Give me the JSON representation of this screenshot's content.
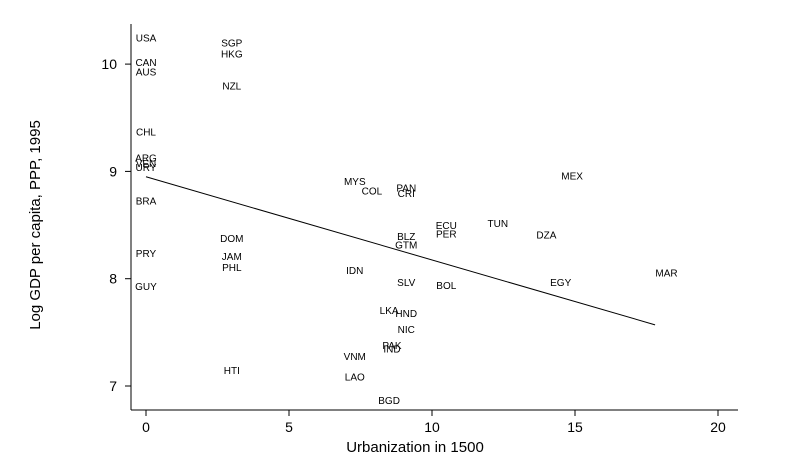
{
  "chart_data": {
    "type": "scatter",
    "title": "",
    "xlabel": "Urbanization in 1500",
    "ylabel": "Log GDP per capita, PPP, 1995",
    "xlim": [
      -0.5,
      20.5
    ],
    "ylim": [
      6.75,
      10.45
    ],
    "x_ticks": [
      0,
      5,
      10,
      15,
      20
    ],
    "y_ticks": [
      7,
      8,
      9,
      10
    ],
    "grid": false,
    "legend": "none",
    "points": [
      {
        "label": "USA",
        "x": 0,
        "y": 10.25
      },
      {
        "label": "CAN",
        "x": 0,
        "y": 10.02
      },
      {
        "label": "AUS",
        "x": 0,
        "y": 9.93
      },
      {
        "label": "CHL",
        "x": 0,
        "y": 9.37
      },
      {
        "label": "ARG",
        "x": 0,
        "y": 9.13
      },
      {
        "label": "VEN",
        "x": 0,
        "y": 9.08
      },
      {
        "label": "URY",
        "x": 0,
        "y": 9.04
      },
      {
        "label": "BRA",
        "x": 0,
        "y": 8.73
      },
      {
        "label": "PRY",
        "x": 0,
        "y": 8.24
      },
      {
        "label": "GUY",
        "x": 0,
        "y": 7.93
      },
      {
        "label": "SGP",
        "x": 3,
        "y": 10.2
      },
      {
        "label": "HKG",
        "x": 3,
        "y": 10.1
      },
      {
        "label": "NZL",
        "x": 3,
        "y": 9.8
      },
      {
        "label": "DOM",
        "x": 3,
        "y": 8.38
      },
      {
        "label": "JAM",
        "x": 3,
        "y": 8.21
      },
      {
        "label": "PHL",
        "x": 3,
        "y": 8.11
      },
      {
        "label": "HTI",
        "x": 3,
        "y": 7.15
      },
      {
        "label": "MYS",
        "x": 7.3,
        "y": 8.91
      },
      {
        "label": "COL",
        "x": 7.9,
        "y": 8.82
      },
      {
        "label": "IDN",
        "x": 7.3,
        "y": 8.08
      },
      {
        "label": "VNM",
        "x": 7.3,
        "y": 7.28
      },
      {
        "label": "LAO",
        "x": 7.3,
        "y": 7.09
      },
      {
        "label": "PAN",
        "x": 9.1,
        "y": 8.85
      },
      {
        "label": "CRI",
        "x": 9.1,
        "y": 8.8
      },
      {
        "label": "BLZ",
        "x": 9.1,
        "y": 8.4
      },
      {
        "label": "GTM",
        "x": 9.1,
        "y": 8.32
      },
      {
        "label": "SLV",
        "x": 9.1,
        "y": 7.97
      },
      {
        "label": "LKA",
        "x": 8.5,
        "y": 7.71
      },
      {
        "label": "HND",
        "x": 9.1,
        "y": 7.68
      },
      {
        "label": "NIC",
        "x": 9.1,
        "y": 7.53
      },
      {
        "label": "PAK",
        "x": 8.6,
        "y": 7.38
      },
      {
        "label": "IND",
        "x": 8.6,
        "y": 7.35
      },
      {
        "label": "BGD",
        "x": 8.5,
        "y": 6.87
      },
      {
        "label": "ECU",
        "x": 10.5,
        "y": 8.5
      },
      {
        "label": "PER",
        "x": 10.5,
        "y": 8.42
      },
      {
        "label": "BOL",
        "x": 10.5,
        "y": 7.94
      },
      {
        "label": "TUN",
        "x": 12.3,
        "y": 8.52
      },
      {
        "label": "DZA",
        "x": 14,
        "y": 8.41
      },
      {
        "label": "MEX",
        "x": 14.9,
        "y": 8.96
      },
      {
        "label": "EGY",
        "x": 14.5,
        "y": 7.97
      },
      {
        "label": "MAR",
        "x": 18.2,
        "y": 8.06
      }
    ],
    "fit_line": {
      "x": [
        0,
        17.8
      ],
      "y": [
        8.95,
        7.57
      ]
    }
  }
}
